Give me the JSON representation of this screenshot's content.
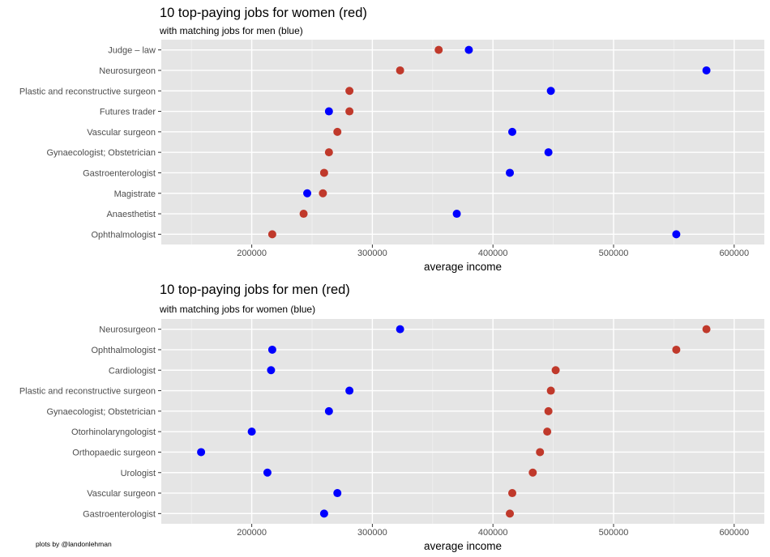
{
  "credit": "plots by @landonlehman",
  "colors": {
    "panel": "#e5e5e5",
    "grid_major": "#ffffff",
    "grid_minor": "#f0f0f0",
    "red": "#c0392b",
    "blue": "#0000ff"
  },
  "chart_data": [
    {
      "type": "scatter",
      "title": "10 top-paying jobs for women (red)",
      "subtitle": "with matching jobs for men (blue)",
      "xlabel": "average income",
      "ylabel": "",
      "xlim": [
        125000,
        625000
      ],
      "x_ticks": [
        200000,
        300000,
        400000,
        500000,
        600000
      ],
      "x_tick_labels": [
        "200000",
        "300000",
        "400000",
        "500000",
        "600000"
      ],
      "grid": true,
      "categories": [
        "Judge – law",
        "Neurosurgeon",
        "Plastic and reconstructive surgeon",
        "Futures trader",
        "Vascular surgeon",
        "Gynaecologist; Obstetrician",
        "Gastroenterologist",
        "Magistrate",
        "Anaesthetist",
        "Ophthalmologist"
      ],
      "series": [
        {
          "color": "red",
          "values": [
            355000,
            323000,
            281000,
            281000,
            271000,
            264000,
            260000,
            259000,
            243000,
            217000
          ]
        },
        {
          "color": "blue",
          "values": [
            380000,
            577000,
            448000,
            264000,
            416000,
            446000,
            414000,
            246000,
            370000,
            552000
          ]
        }
      ]
    },
    {
      "type": "scatter",
      "title": "10 top-paying jobs for men (red)",
      "subtitle": "with matching jobs for women (blue)",
      "xlabel": "average income",
      "ylabel": "",
      "xlim": [
        125000,
        625000
      ],
      "x_ticks": [
        200000,
        300000,
        400000,
        500000,
        600000
      ],
      "x_tick_labels": [
        "200000",
        "300000",
        "400000",
        "500000",
        "600000"
      ],
      "grid": true,
      "categories": [
        "Neurosurgeon",
        "Ophthalmologist",
        "Cardiologist",
        "Plastic and reconstructive surgeon",
        "Gynaecologist; Obstetrician",
        "Otorhinolaryngologist",
        "Orthopaedic surgeon",
        "Urologist",
        "Vascular surgeon",
        "Gastroenterologist"
      ],
      "series": [
        {
          "color": "red",
          "values": [
            577000,
            552000,
            452000,
            448000,
            446000,
            445000,
            439000,
            433000,
            416000,
            414000
          ]
        },
        {
          "color": "blue",
          "values": [
            323000,
            217000,
            216000,
            281000,
            264000,
            200000,
            158000,
            213000,
            271000,
            260000
          ]
        }
      ]
    }
  ]
}
